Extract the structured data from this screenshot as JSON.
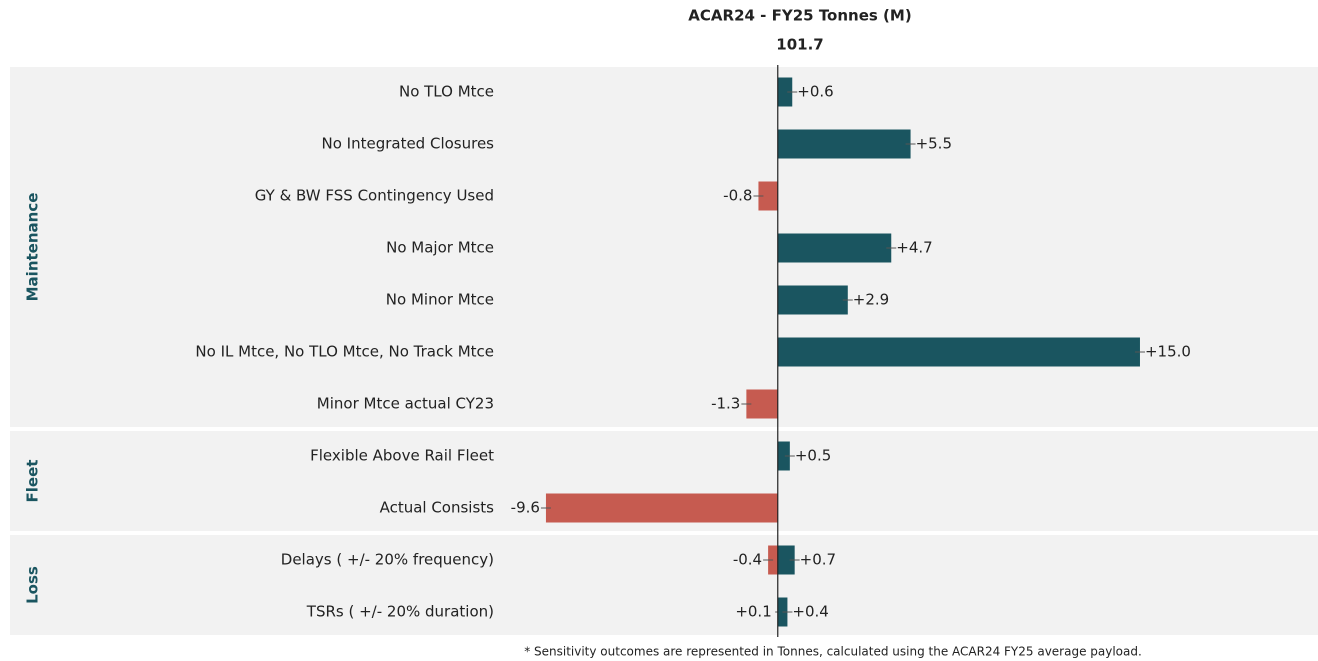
{
  "chart_data": {
    "type": "tornado",
    "title": "ACAR24 - FY25 Tonnes (M)",
    "baseline": 101.7,
    "pos_color": "#1a5560",
    "neg_color": "#c65b50",
    "xlim": [
      -12,
      22
    ],
    "groups": [
      {
        "label": "Maintenance",
        "rows": [
          {
            "name": "No TLO Mtce",
            "values": [
              0.6
            ],
            "value_labels": [
              "+0.6"
            ]
          },
          {
            "name": "No Integrated Closures",
            "values": [
              5.5
            ],
            "value_labels": [
              "+5.5"
            ]
          },
          {
            "name": "GY & BW FSS Contingency Used",
            "values": [
              -0.8
            ],
            "value_labels": [
              "-0.8"
            ]
          },
          {
            "name": "No Major Mtce",
            "values": [
              4.7
            ],
            "value_labels": [
              "+4.7"
            ]
          },
          {
            "name": "No Minor Mtce",
            "values": [
              2.9
            ],
            "value_labels": [
              "+2.9"
            ]
          },
          {
            "name": "No IL Mtce, No TLO Mtce, No Track Mtce",
            "values": [
              15.0
            ],
            "value_labels": [
              "+15.0"
            ]
          },
          {
            "name": "Minor Mtce actual CY23",
            "values": [
              -1.3
            ],
            "value_labels": [
              "-1.3"
            ]
          }
        ]
      },
      {
        "label": "Fleet",
        "rows": [
          {
            "name": "Flexible Above Rail Fleet",
            "values": [
              0.5
            ],
            "value_labels": [
              "+0.5"
            ]
          },
          {
            "name": "Actual Consists",
            "values": [
              -9.6
            ],
            "value_labels": [
              "-9.6"
            ]
          }
        ]
      },
      {
        "label": "Loss",
        "rows": [
          {
            "name": "Delays ( +/- 20% frequency)",
            "values": [
              -0.4,
              0.7
            ],
            "value_labels": [
              "-0.4",
              "+0.7"
            ]
          },
          {
            "name": "TSRs ( +/- 20% duration)",
            "values": [
              0.1,
              0.4
            ],
            "value_labels": [
              "+0.1",
              "+0.4"
            ]
          }
        ]
      }
    ],
    "footnote": "* Sensitivity outcomes are represented in Tonnes, calculated using the ACAR24 FY25 average payload."
  }
}
